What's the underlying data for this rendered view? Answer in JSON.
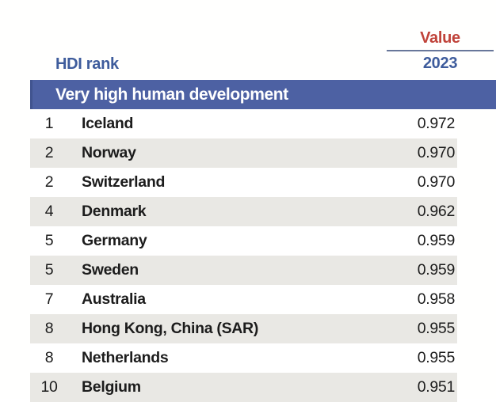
{
  "header": {
    "value_label": "Value",
    "year": "2023",
    "hdi_rank_label": "HDI rank"
  },
  "section": {
    "title": "Very high human development"
  },
  "table": {
    "columns": [
      "HDI rank",
      "Country",
      "Value 2023"
    ],
    "rows": [
      {
        "rank": "1",
        "country": "Iceland",
        "value": "0.972"
      },
      {
        "rank": "2",
        "country": "Norway",
        "value": "0.970"
      },
      {
        "rank": "2",
        "country": "Switzerland",
        "value": "0.970"
      },
      {
        "rank": "4",
        "country": "Denmark",
        "value": "0.962"
      },
      {
        "rank": "5",
        "country": "Germany",
        "value": "0.959"
      },
      {
        "rank": "5",
        "country": "Sweden",
        "value": "0.959"
      },
      {
        "rank": "7",
        "country": "Australia",
        "value": "0.958"
      },
      {
        "rank": "8",
        "country": "Hong Kong, China (SAR)",
        "value": "0.955"
      },
      {
        "rank": "8",
        "country": "Netherlands",
        "value": "0.955"
      },
      {
        "rank": "10",
        "country": "Belgium",
        "value": "0.951"
      }
    ]
  },
  "colors": {
    "accent_red": "#c0433a",
    "accent_blue": "#3e5c9c",
    "banner_blue": "#4d61a3",
    "row_stripe": "#e9e8e4",
    "text": "#1c1c1c"
  }
}
